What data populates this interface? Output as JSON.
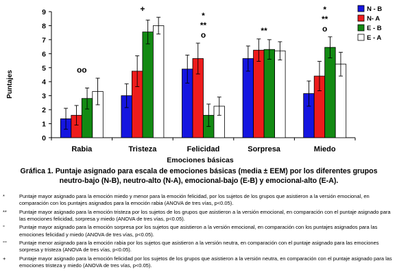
{
  "chart_data": {
    "type": "bar",
    "ylabel": "Puntajes",
    "xlabel": "Emociones básicas",
    "ylim": [
      0,
      9
    ],
    "yticks": [
      "0",
      "1",
      "2",
      "3",
      "4",
      "5",
      "6",
      "7",
      "8",
      "9"
    ],
    "legend_position": "top-right",
    "categories": [
      "Rabia",
      "Tristeza",
      "Felicidad",
      "Sorpresa",
      "Miedo"
    ],
    "series": [
      {
        "name": "N - B",
        "color": "#1515e0",
        "values": [
          1.35,
          3.0,
          4.9,
          5.65,
          3.15
        ],
        "errors": [
          0.75,
          0.85,
          1.0,
          0.9,
          0.9
        ]
      },
      {
        "name": "N- A",
        "color": "#ee1c1c",
        "values": [
          1.6,
          4.75,
          5.65,
          6.25,
          4.4
        ],
        "errors": [
          0.7,
          1.1,
          1.1,
          0.8,
          1.05
        ]
      },
      {
        "name": "E - B",
        "color": "#138a13",
        "values": [
          2.8,
          7.55,
          1.6,
          6.3,
          6.45
        ],
        "errors": [
          0.75,
          0.85,
          0.8,
          0.7,
          0.75
        ]
      },
      {
        "name": "E - A",
        "color": "#ffffff",
        "values": [
          3.3,
          8.0,
          2.25,
          6.2,
          5.25
        ],
        "errors": [
          0.95,
          0.6,
          0.65,
          0.65,
          0.85
        ]
      }
    ],
    "annotations": [
      {
        "category": "Rabia",
        "lines": [
          "oo"
        ]
      },
      {
        "category": "Tristeza",
        "lines": [
          "+"
        ]
      },
      {
        "category": "Felicidad",
        "lines": [
          "*",
          "**",
          "o"
        ]
      },
      {
        "category": "Sorpresa",
        "lines": [
          "**"
        ]
      },
      {
        "category": "Miedo",
        "lines": [
          "*",
          "**",
          "o"
        ]
      }
    ]
  },
  "caption": "Gráfica 1. Puntaje asignado para escala de emociones básicas (media ± EEM) por los diferentes grupos neutro-bajo (N-B), neutro-alto (N-A), emocional-bajo (E-B) y emocional-alto (E-A).",
  "notes": [
    {
      "symbol": "*",
      "text": "Puntaje mayor asignado para la emoción miedo y menor para la emoción felicidad, por los sujetos de los grupos que asistieron a la versión emocional, en comparación con los puntajes asignados para la emoción rabia (ANOVA de tres vías, p<0.05)."
    },
    {
      "symbol": "**",
      "text": "Puntaje mayor asignado para la emoción tristeza por los sujetos de los grupos que asistieron a la versión emocional, en comparación con el puntaje asignado para las emociones felicidad, sorpresa y miedo (ANOVA de tres vías, p<0.05)."
    },
    {
      "symbol": "°",
      "text": "Puntaje mayor asignado para la emoción sorpresa por los sujetos que asistieron a la versión emocional, en comparación con los puntajes asignados para las emociones felicidad y miedo (ANOVA de tres vías, p<0.05)."
    },
    {
      "symbol": "°°",
      "text": "Puntaje menor asignado para la emoción rabia por los sujetos que asistieron a la versión neutra, en comparación con el puntaje asignado para las emociones sorpresa y tristeza (ANOVA de tres vías, p<0.05)."
    },
    {
      "symbol": "+",
      "text": "Puntaje mayor asignado para la emoción felicidad por los sujetos de los grupos que asistieron a la versión neutra, en comparación con el puntaje asignado para las emociones tristeza y miedo (ANOVA de tres vías, p<0.05)."
    }
  ]
}
